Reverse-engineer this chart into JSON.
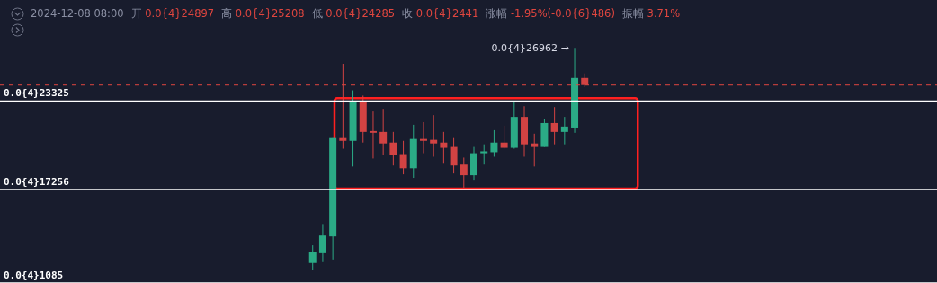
{
  "chart_data": {
    "type": "candlestick",
    "annotations": [
      "2024-12-08 08:00",
      "开 0.0{4}24897",
      "高 0.0{4}25208",
      "低 0.0{4}24285",
      "收 0.0{4}2441",
      "涨幅 -1.95%(-0.0{6}486)",
      "振幅 3.71%",
      "0.0{4}26962 →"
    ],
    "categories": [
      null,
      null,
      null,
      null,
      null,
      null,
      null,
      null,
      null,
      null,
      null,
      null,
      null,
      null,
      null,
      null,
      null,
      null,
      null,
      null,
      null,
      null,
      null,
      null,
      null,
      null,
      null,
      null
    ],
    "ohlc": [
      [
        1.222e-05,
        1.343e-05,
        1.173e-05,
        1.295e-05
      ],
      [
        1.289e-05,
        1.489e-05,
        1.228e-05,
        1.41e-05
      ],
      [
        1.404e-05,
        2.078e-05,
        1.246e-05,
        2.078e-05
      ],
      [
        2.078e-05,
        2.587e-05,
        2.005e-05,
        2.059e-05
      ],
      [
        2.059e-05,
        2.405e-05,
        1.883e-05,
        2.326e-05
      ],
      [
        2.326e-05,
        2.369e-05,
        2.047e-05,
        2.12e-05
      ],
      [
        2.126e-05,
        2.26e-05,
        1.938e-05,
        2.114e-05
      ],
      [
        2.12e-05,
        2.278e-05,
        1.962e-05,
        2.041e-05
      ],
      [
        2.047e-05,
        2.12e-05,
        1.89e-05,
        1.962e-05
      ],
      [
        1.968e-05,
        2.059e-05,
        1.829e-05,
        1.871e-05
      ],
      [
        1.871e-05,
        2.169e-05,
        1.805e-05,
        2.072e-05
      ],
      [
        2.072e-05,
        2.187e-05,
        1.974e-05,
        2.059e-05
      ],
      [
        2.066e-05,
        2.235e-05,
        1.95e-05,
        2.041e-05
      ],
      [
        2.047e-05,
        2.12e-05,
        1.908e-05,
        2.011e-05
      ],
      [
        2.017e-05,
        2.078e-05,
        1.835e-05,
        1.89e-05
      ],
      [
        1.896e-05,
        1.944e-05,
        1.738e-05,
        1.823e-05
      ],
      [
        1.823e-05,
        2.017e-05,
        1.792e-05,
        1.974e-05
      ],
      [
        1.974e-05,
        2.035e-05,
        1.896e-05,
        1.987e-05
      ],
      [
        1.981e-05,
        2.132e-05,
        1.95e-05,
        2.047e-05
      ],
      [
        2.047e-05,
        2.163e-05,
        2.005e-05,
        2.011e-05
      ],
      [
        2.011e-05,
        2.326e-05,
        2.005e-05,
        2.223e-05
      ],
      [
        2.223e-05,
        2.296e-05,
        1.95e-05,
        2.035e-05
      ],
      [
        2.041e-05,
        2.108e-05,
        1.883e-05,
        2.017e-05
      ],
      [
        2.017e-05,
        2.211e-05,
        2.017e-05,
        2.181e-05
      ],
      [
        2.181e-05,
        2.29e-05,
        2.035e-05,
        2.12e-05
      ],
      [
        2.12e-05,
        2.223e-05,
        2.035e-05,
        2.157e-05
      ],
      [
        2.15e-05,
        2.6962e-05,
        2.114e-05,
        2.4897e-05
      ],
      [
        2.4897e-05,
        2.5208e-05,
        2.4285e-05,
        2.441e-05
      ]
    ],
    "colors": [
      "#2bab86",
      "#2bab86",
      "#2bab86",
      "#d24343",
      "#2bab86",
      "#d24343",
      "#d24343",
      "#d24343",
      "#d24343",
      "#d24343",
      "#2bab86",
      "#d24343",
      "#d24343",
      "#d24343",
      "#d24343",
      "#d24343",
      "#2bab86",
      "#2bab86",
      "#2bab86",
      "#d24343",
      "#2bab86",
      "#d24343",
      "#d24343",
      "#2bab86",
      "#d24343",
      "#2bab86",
      "#2bab86",
      "#d24343"
    ],
    "ylim": [
      1.085e-05,
      3.024e-05
    ],
    "tick_labels": false,
    "ref_lines": [
      {
        "axis": "y",
        "value": 2.3325e-05,
        "label": "0.0{4}23325",
        "color": "#ffffff"
      },
      {
        "axis": "y",
        "value": 1.7256e-05,
        "label": "0.0{4}17256",
        "color": "#ffffff"
      },
      {
        "axis": "y",
        "value": 1.085e-05,
        "label": "0.0{4}1085",
        "color": "#ffffff"
      },
      {
        "axis": "y",
        "value": 2.441e-05,
        "color": "#e0463f",
        "line_style": "dashed"
      }
    ]
  }
}
